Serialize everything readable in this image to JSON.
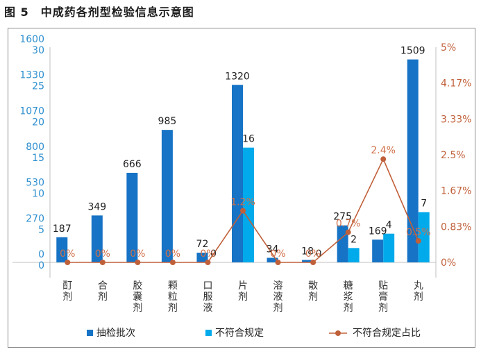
{
  "figure_title": "图 5　中成药各剂型检验信息示意图",
  "colors": {
    "sampled": "#1673c5",
    "nonconforming": "#00aaeb",
    "ratio": "#c0603a",
    "left_axis_text": "#2e8fcf",
    "right_axis_text": "#c0603a"
  },
  "chart_data": {
    "type": "bar",
    "categories": [
      "酊剂",
      "合剂",
      "胶囊剂",
      "颗粒剂",
      "口服液",
      "片剂",
      "溶液剂",
      "散剂",
      "糖浆剂",
      "贴膏剂",
      "丸剂"
    ],
    "series": [
      {
        "name": "抽检批次",
        "values": [
          187,
          349,
          666,
          985,
          72,
          1320,
          34,
          18,
          275,
          169,
          1509
        ],
        "axis": "left_outer"
      },
      {
        "name": "不符合规定",
        "values": [
          0,
          0,
          0,
          0,
          0,
          16,
          0,
          0,
          2,
          4,
          7
        ],
        "axis": "left_inner"
      },
      {
        "name": "不符合规定占比",
        "type": "line",
        "values": [
          0,
          0,
          0,
          0,
          0,
          1.2,
          0,
          0,
          0.7,
          2.4,
          0.5
        ],
        "axis": "right"
      }
    ],
    "bar_labels_nonconforming": [
      "",
      "",
      "",
      "",
      "0",
      "16",
      "",
      "0",
      "2",
      "4",
      "7"
    ],
    "ratio_labels": [
      "0%",
      "0%",
      "0%",
      "0%",
      "0%",
      "1.2%",
      "0%",
      "0%",
      "0.7%",
      "2.4%",
      "0.5%"
    ],
    "y_left_outer": {
      "range": [
        0,
        1600
      ],
      "ticks": [
        "0",
        "270",
        "530",
        "800",
        "1070",
        "1330",
        "1600"
      ]
    },
    "y_left_inner": {
      "range": [
        0,
        30
      ],
      "ticks": [
        "0",
        "5",
        "10",
        "15",
        "20",
        "25",
        "30"
      ]
    },
    "y_right": {
      "range": [
        0,
        5
      ],
      "ticks": [
        "0%",
        "0.83%",
        "1.67%",
        "2.5%",
        "3.33%",
        "4.17%",
        "5%"
      ]
    },
    "legend": [
      "抽检批次",
      "不符合规定",
      "不符合规定占比"
    ],
    "legend_position": "bottom"
  }
}
